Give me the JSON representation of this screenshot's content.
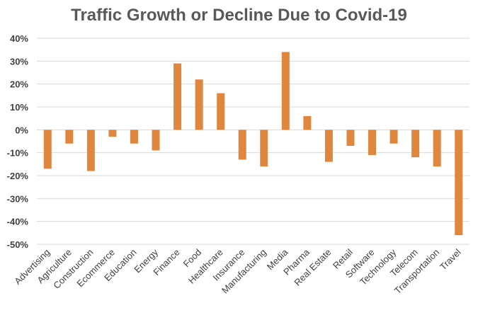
{
  "chart_data": {
    "type": "bar",
    "title": "Traffic Growth or Decline Due to Covid-19",
    "xlabel": "",
    "ylabel": "",
    "ylim": [
      -50,
      40
    ],
    "yticks": [
      40,
      30,
      20,
      10,
      0,
      -10,
      -20,
      -30,
      -40,
      -50
    ],
    "ytick_labels": [
      "40%",
      "30%",
      "20%",
      "10%",
      "0%",
      "-10%",
      "-20%",
      "-30%",
      "-40%",
      "-50%"
    ],
    "grid": true,
    "bar_color": "#E0873F",
    "categories": [
      "Advertising",
      "Agriculture",
      "Construction",
      "Ecommerce",
      "Education",
      "Energy",
      "Finance",
      "Food",
      "Healthcare",
      "Insurance",
      "Manufacturing",
      "Media",
      "Pharma",
      "Real Estate",
      "Retail",
      "Software",
      "Technology",
      "Telecom",
      "Transportation",
      "Travel"
    ],
    "values": [
      -17,
      -6,
      -18,
      -3,
      -6,
      -9,
      29,
      22,
      16,
      -13,
      -16,
      34,
      6,
      -14,
      -7,
      -11,
      -6,
      -12,
      -16,
      -46
    ]
  }
}
